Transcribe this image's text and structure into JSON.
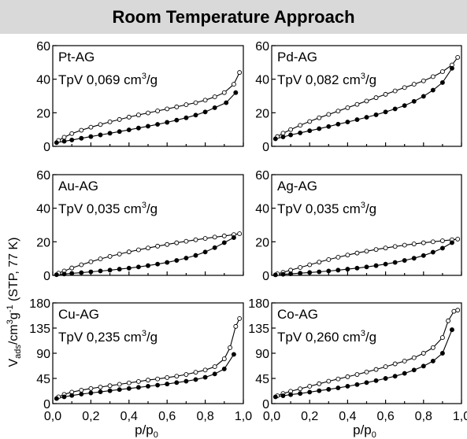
{
  "header": {
    "title": "Room Temperature Approach"
  },
  "axes": {
    "xlabel_main": "p/p",
    "xlabel_sub": "0",
    "ylabel_v": "V",
    "ylabel_sub": "ads",
    "ylabel_unit": "/cm",
    "ylabel_sup1": "3",
    "ylabel_g": "g",
    "ylabel_sup2": "-1",
    "ylabel_tail": " (STP, 77 K)",
    "x_tick_labels": [
      "0,0",
      "0,2",
      "0,4",
      "0,6",
      "0,8",
      "1,0"
    ]
  },
  "chart_data": [
    {
      "type": "line",
      "name": "Pt-AG",
      "tpv_text": "TpV 0,069 cm",
      "tpv_sup": "3",
      "tpv_unit": "/g",
      "xlim": [
        0,
        1.0
      ],
      "ylim": [
        0,
        60
      ],
      "y_ticks": [
        0,
        20,
        40,
        60
      ],
      "adsorption": {
        "x": [
          0.02,
          0.06,
          0.1,
          0.15,
          0.2,
          0.25,
          0.3,
          0.35,
          0.4,
          0.45,
          0.5,
          0.55,
          0.6,
          0.65,
          0.7,
          0.75,
          0.8,
          0.85,
          0.91,
          0.96
        ],
        "y": [
          2.2,
          3.0,
          3.8,
          4.8,
          5.8,
          6.8,
          7.8,
          8.8,
          9.8,
          10.9,
          12.0,
          13.1,
          14.3,
          15.6,
          17.0,
          18.6,
          20.5,
          23.0,
          26.0,
          32.0
        ]
      },
      "desorption": {
        "x": [
          0.98,
          0.95,
          0.9,
          0.85,
          0.8,
          0.75,
          0.7,
          0.65,
          0.6,
          0.55,
          0.5,
          0.45,
          0.4,
          0.35,
          0.3,
          0.25,
          0.2,
          0.15,
          0.1,
          0.06,
          0.03
        ],
        "y": [
          44.0,
          37.0,
          32.0,
          29.5,
          27.5,
          26.0,
          24.8,
          23.5,
          22.3,
          21.1,
          19.9,
          18.7,
          17.4,
          16.0,
          14.6,
          13.0,
          11.4,
          9.6,
          7.6,
          5.4,
          3.5
        ]
      }
    },
    {
      "type": "line",
      "name": "Pd-AG",
      "tpv_text": "TpV 0,082 cm",
      "tpv_sup": "3",
      "tpv_unit": "/g",
      "xlim": [
        0,
        1.0
      ],
      "ylim": [
        0,
        60
      ],
      "y_ticks": [
        0,
        20,
        40,
        60
      ],
      "adsorption": {
        "x": [
          0.02,
          0.06,
          0.1,
          0.15,
          0.2,
          0.25,
          0.3,
          0.35,
          0.4,
          0.45,
          0.5,
          0.55,
          0.6,
          0.65,
          0.7,
          0.75,
          0.8,
          0.85,
          0.9,
          0.95
        ],
        "y": [
          4.5,
          5.6,
          6.8,
          8.0,
          9.3,
          10.5,
          11.8,
          13.2,
          14.5,
          15.9,
          17.3,
          18.8,
          20.5,
          22.3,
          24.3,
          26.8,
          29.8,
          33.5,
          38.0,
          46.5
        ]
      },
      "desorption": {
        "x": [
          0.98,
          0.95,
          0.9,
          0.85,
          0.8,
          0.75,
          0.7,
          0.65,
          0.6,
          0.55,
          0.5,
          0.45,
          0.4,
          0.35,
          0.3,
          0.25,
          0.2,
          0.15,
          0.1,
          0.06,
          0.03
        ],
        "y": [
          53.0,
          48.5,
          44.5,
          41.5,
          39.0,
          37.0,
          35.0,
          33.0,
          31.0,
          29.0,
          27.0,
          25.0,
          23.0,
          21.0,
          19.0,
          17.0,
          14.8,
          12.5,
          10.0,
          7.8,
          5.8
        ]
      }
    },
    {
      "type": "line",
      "name": "Au-AG",
      "tpv_text": "TpV 0,035 cm",
      "tpv_sup": "3",
      "tpv_unit": "/g",
      "xlim": [
        0,
        1.0
      ],
      "ylim": [
        0,
        60
      ],
      "y_ticks": [
        0,
        20,
        40,
        60
      ],
      "adsorption": {
        "x": [
          0.02,
          0.06,
          0.1,
          0.15,
          0.2,
          0.25,
          0.3,
          0.35,
          0.4,
          0.45,
          0.5,
          0.55,
          0.6,
          0.65,
          0.7,
          0.75,
          0.8,
          0.85,
          0.9,
          0.95
        ],
        "y": [
          0.4,
          0.8,
          1.2,
          1.6,
          2.1,
          2.6,
          3.1,
          3.7,
          4.3,
          5.0,
          5.8,
          6.7,
          7.7,
          8.9,
          10.3,
          11.9,
          13.9,
          16.5,
          19.5,
          22.5
        ]
      },
      "desorption": {
        "x": [
          0.98,
          0.95,
          0.9,
          0.85,
          0.8,
          0.75,
          0.7,
          0.65,
          0.6,
          0.55,
          0.5,
          0.45,
          0.4,
          0.35,
          0.3,
          0.25,
          0.2,
          0.15,
          0.1,
          0.06,
          0.03
        ],
        "y": [
          24.8,
          24.3,
          23.5,
          22.8,
          22.0,
          21.2,
          20.3,
          19.4,
          18.4,
          17.4,
          16.3,
          15.2,
          14.0,
          12.7,
          11.3,
          9.8,
          8.1,
          6.3,
          4.4,
          2.6,
          1.3
        ]
      }
    },
    {
      "type": "line",
      "name": "Ag-AG",
      "tpv_text": "TpV 0,035 cm",
      "tpv_sup": "3",
      "tpv_unit": "/g",
      "xlim": [
        0,
        1.0
      ],
      "ylim": [
        0,
        60
      ],
      "y_ticks": [
        0,
        20,
        40,
        60
      ],
      "adsorption": {
        "x": [
          0.02,
          0.06,
          0.1,
          0.15,
          0.2,
          0.25,
          0.3,
          0.35,
          0.4,
          0.45,
          0.5,
          0.55,
          0.6,
          0.65,
          0.7,
          0.75,
          0.8,
          0.85,
          0.9,
          0.95
        ],
        "y": [
          0.3,
          0.6,
          0.9,
          1.3,
          1.7,
          2.1,
          2.6,
          3.1,
          3.7,
          4.3,
          5.0,
          5.8,
          6.7,
          7.7,
          8.9,
          10.2,
          11.8,
          13.8,
          16.2,
          19.5
        ]
      },
      "desorption": {
        "x": [
          0.98,
          0.95,
          0.9,
          0.85,
          0.8,
          0.75,
          0.7,
          0.65,
          0.6,
          0.55,
          0.5,
          0.45,
          0.4,
          0.35,
          0.3,
          0.25,
          0.2,
          0.15,
          0.1,
          0.06,
          0.03
        ],
        "y": [
          21.6,
          21.2,
          20.6,
          20.0,
          19.4,
          18.7,
          18.0,
          17.2,
          16.3,
          15.4,
          14.4,
          13.3,
          12.1,
          10.8,
          9.4,
          7.9,
          6.3,
          4.7,
          3.1,
          1.8,
          0.9
        ]
      }
    },
    {
      "type": "line",
      "name": "Cu-AG",
      "tpv_text": "TpV 0,235 cm",
      "tpv_sup": "3",
      "tpv_unit": "/g",
      "xlim": [
        0,
        1.0
      ],
      "ylim": [
        0,
        180
      ],
      "y_ticks": [
        0,
        45,
        90,
        135,
        180
      ],
      "adsorption": {
        "x": [
          0.02,
          0.06,
          0.1,
          0.15,
          0.2,
          0.25,
          0.3,
          0.35,
          0.4,
          0.45,
          0.5,
          0.55,
          0.6,
          0.65,
          0.7,
          0.75,
          0.8,
          0.85,
          0.9,
          0.95
        ],
        "y": [
          9,
          12,
          14.5,
          17,
          19,
          21,
          23,
          25,
          27,
          29,
          31,
          33,
          35,
          37.5,
          40,
          43,
          47,
          53,
          62,
          88
        ]
      },
      "desorption": {
        "x": [
          0.98,
          0.96,
          0.93,
          0.9,
          0.85,
          0.8,
          0.75,
          0.7,
          0.65,
          0.6,
          0.55,
          0.5,
          0.45,
          0.4,
          0.35,
          0.3,
          0.25,
          0.2,
          0.15,
          0.1,
          0.06,
          0.03
        ],
        "y": [
          152,
          138,
          100,
          80,
          66,
          60,
          56,
          52,
          49,
          46.5,
          44,
          42,
          39.5,
          37,
          34.5,
          32,
          29.5,
          27,
          24,
          20.5,
          16.5,
          12
        ]
      }
    },
    {
      "type": "line",
      "name": "Co-AG",
      "tpv_text": "TpV 0,260 cm",
      "tpv_sup": "3",
      "tpv_unit": "/g",
      "xlim": [
        0,
        1.0
      ],
      "ylim": [
        0,
        180
      ],
      "y_ticks": [
        0,
        45,
        90,
        135,
        180
      ],
      "adsorption": {
        "x": [
          0.02,
          0.06,
          0.1,
          0.15,
          0.2,
          0.25,
          0.3,
          0.35,
          0.4,
          0.45,
          0.5,
          0.55,
          0.6,
          0.65,
          0.7,
          0.75,
          0.8,
          0.85,
          0.9,
          0.95
        ],
        "y": [
          12,
          14,
          16,
          18,
          20.5,
          23,
          25.5,
          28,
          31,
          34,
          37.5,
          41,
          45,
          49,
          54,
          60,
          67,
          76,
          90,
          132
        ]
      },
      "desorption": {
        "x": [
          0.98,
          0.96,
          0.93,
          0.9,
          0.85,
          0.8,
          0.75,
          0.7,
          0.65,
          0.6,
          0.55,
          0.5,
          0.45,
          0.4,
          0.35,
          0.3,
          0.25,
          0.2,
          0.15,
          0.1,
          0.06,
          0.03
        ],
        "y": [
          167,
          165,
          148,
          118,
          100,
          90,
          82,
          76,
          71,
          66,
          61,
          56.5,
          52,
          48,
          44,
          40,
          35.5,
          31,
          26.5,
          22,
          18,
          14
        ]
      }
    }
  ]
}
